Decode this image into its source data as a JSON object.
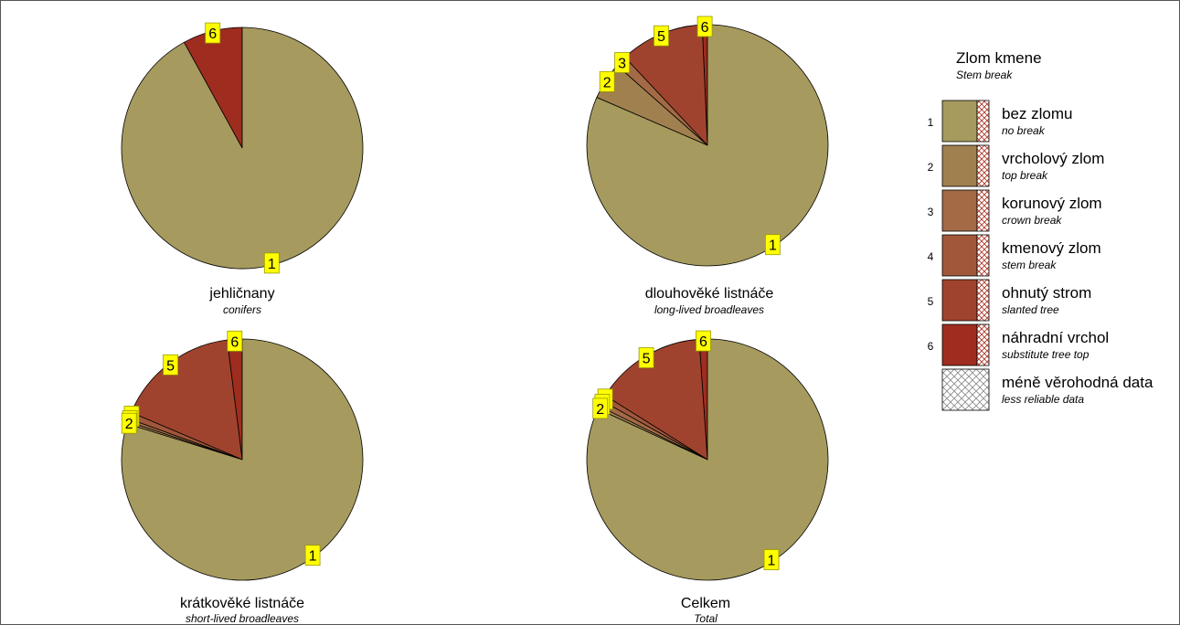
{
  "chart_data": {
    "type": "pie",
    "legend": {
      "title": "Zlom kmene",
      "subtitle": "Stem break",
      "placement": "right",
      "items": [
        {
          "code": "1",
          "label": "bez zlomu",
          "sublabel": "no break",
          "color": "#A69A5E"
        },
        {
          "code": "2",
          "label": "vrcholový zlom",
          "sublabel": "top break",
          "color": "#A1804F"
        },
        {
          "code": "3",
          "label": "korunový zlom",
          "sublabel": "crown break",
          "color": "#A36A45"
        },
        {
          "code": "4",
          "label": "kmenový zlom",
          "sublabel": "stem break",
          "color": "#A1583A"
        },
        {
          "code": "5",
          "label": "ohnutý strom",
          "sublabel": "slanted tree",
          "color": "#A0432E"
        },
        {
          "code": "6",
          "label": "náhradní vrchol",
          "sublabel": "substitute tree top",
          "color": "#9F2D1F"
        }
      ],
      "less_reliable": {
        "label": "méně věrohodná data",
        "sublabel": "less reliable data"
      }
    },
    "pies": [
      {
        "title": "jehličnany",
        "subtitle": "conifers",
        "slices": [
          {
            "code": "1",
            "value": 92.0
          },
          {
            "code": "6",
            "value": 8.0
          }
        ]
      },
      {
        "title": "dlouhověké listnáče",
        "subtitle": "long-lived broadleaves",
        "slices": [
          {
            "code": "1",
            "value": 81.5
          },
          {
            "code": "2",
            "value": 5.0
          },
          {
            "code": "3",
            "value": 1.5
          },
          {
            "code": "5",
            "value": 11.3
          },
          {
            "code": "6",
            "value": 0.7
          }
        ]
      },
      {
        "title": "krátkověké listnáče",
        "subtitle": "short-lived broadleaves",
        "slices": [
          {
            "code": "1",
            "value": 79.8
          },
          {
            "code": "2",
            "value": 0.3
          },
          {
            "code": "3",
            "value": 0.4
          },
          {
            "code": "4",
            "value": 0.9
          },
          {
            "code": "5",
            "value": 16.6
          },
          {
            "code": "6",
            "value": 2.0
          }
        ]
      },
      {
        "title": "Celkem",
        "subtitle": "Total",
        "slices": [
          {
            "code": "1",
            "value": 81.9
          },
          {
            "code": "2",
            "value": 0.4
          },
          {
            "code": "3",
            "value": 0.8
          },
          {
            "code": "4",
            "value": 0.8
          },
          {
            "code": "5",
            "value": 15.0
          },
          {
            "code": "6",
            "value": 1.1
          }
        ]
      }
    ]
  }
}
